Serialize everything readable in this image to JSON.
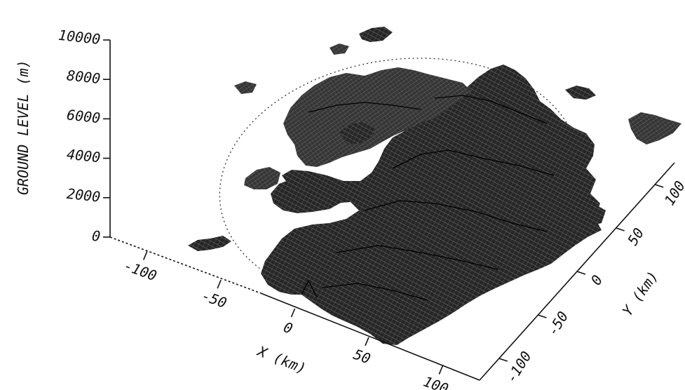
{
  "chart_data": {
    "type": "surface",
    "title": "",
    "zlabel": "GROUND LEVEL (m)",
    "xlabel": "X (km)",
    "ylabel": "Y (km)",
    "z_ticks": [
      {
        "value": 0,
        "label": "0"
      },
      {
        "value": 2000,
        "label": "2000"
      },
      {
        "value": 4000,
        "label": "4000"
      },
      {
        "value": 6000,
        "label": "6000"
      },
      {
        "value": 8000,
        "label": "8000"
      },
      {
        "value": 10000,
        "label": "10000"
      }
    ],
    "x_ticks": [
      {
        "value": -100,
        "label": "-100"
      },
      {
        "value": -50,
        "label": "-50"
      },
      {
        "value": 0,
        "label": "0"
      },
      {
        "value": 50,
        "label": "50"
      },
      {
        "value": 100,
        "label": "100"
      }
    ],
    "y_ticks": [
      {
        "value": -100,
        "label": "-100"
      },
      {
        "value": -50,
        "label": "-50"
      },
      {
        "value": 0,
        "label": "0"
      },
      {
        "value": 50,
        "label": "50"
      },
      {
        "value": 100,
        "label": "100"
      }
    ],
    "zlim": [
      0,
      10000
    ],
    "xlim": [
      -125,
      125
    ],
    "ylim": [
      -125,
      125
    ],
    "range_ring": true,
    "grid": false,
    "style": "wireframe"
  }
}
